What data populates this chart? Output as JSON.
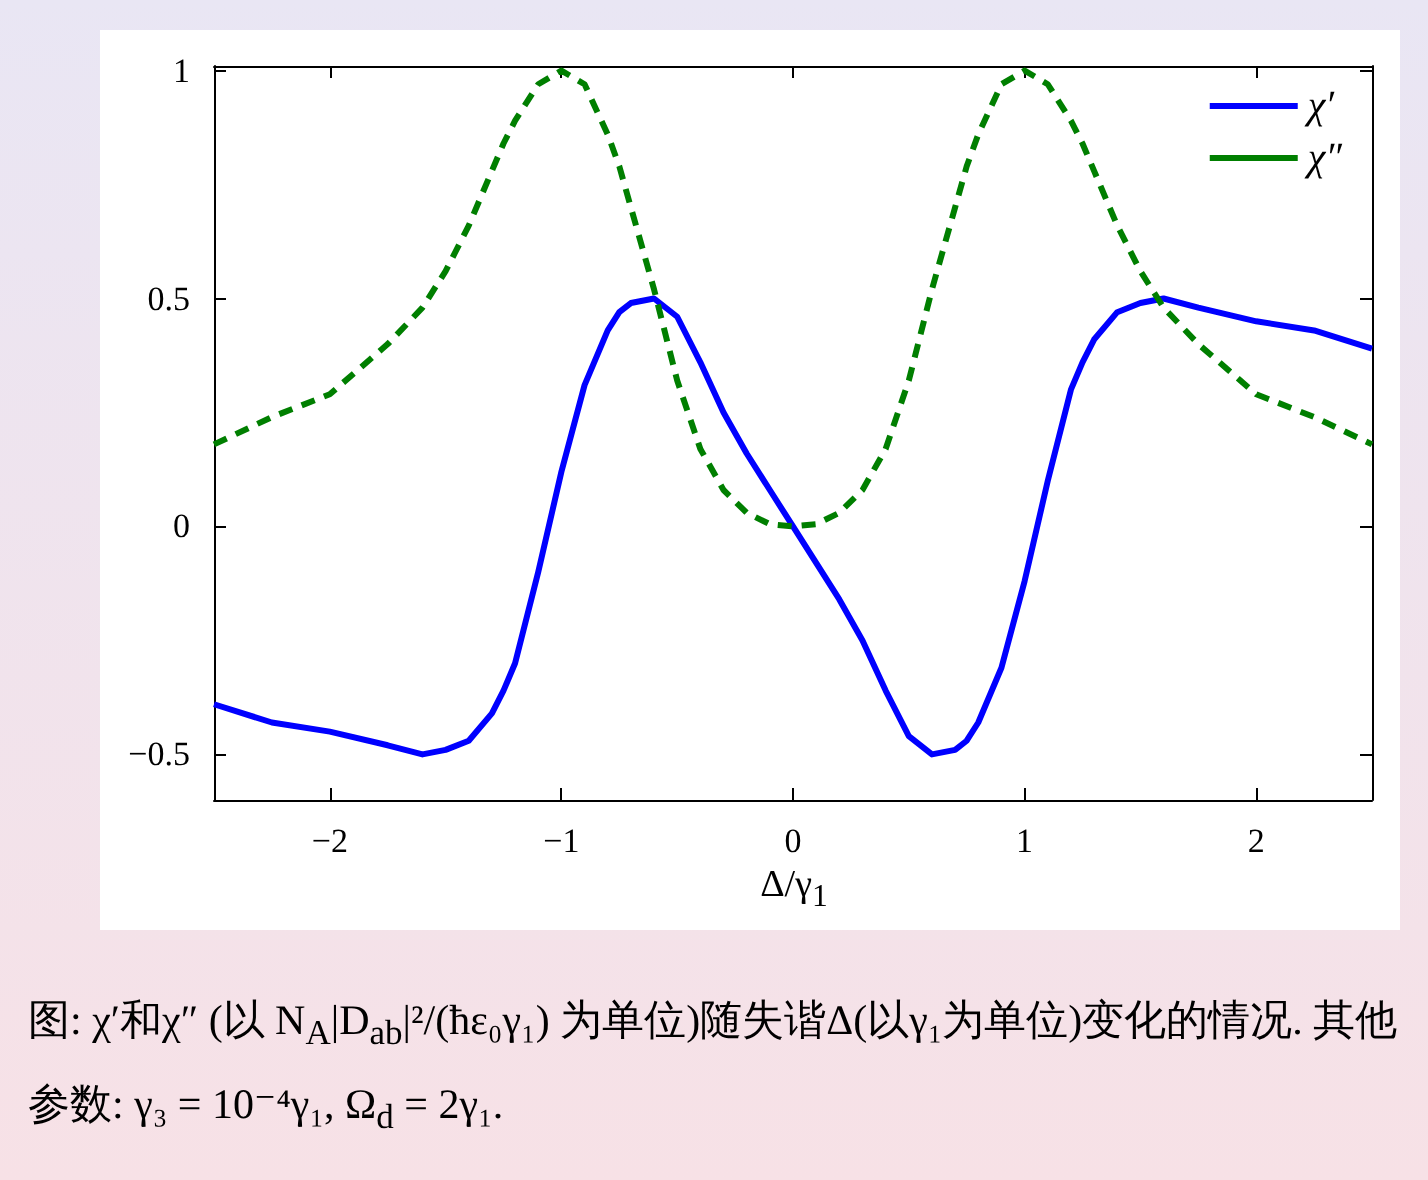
{
  "chart_data": {
    "type": "line",
    "xlabel": "Δ/γ$_{1}$",
    "xlim": [
      -2.5,
      2.5
    ],
    "xticks": [
      -2,
      -1,
      0,
      1,
      2
    ],
    "ylim": [
      -0.6,
      1.01
    ],
    "yticks": [
      -0.5,
      0,
      0.5,
      1
    ],
    "grid": false,
    "legend": "top right",
    "marker": "none",
    "x": [
      -2.5,
      -2.25,
      -2,
      -1.75,
      -1.6,
      -1.5,
      -1.4,
      -1.3,
      -1.25,
      -1.2,
      -1.1,
      -1,
      -0.9,
      -0.8,
      -0.75,
      -0.7,
      -0.6,
      -0.5,
      -0.4,
      -0.3,
      -0.2,
      -0.1,
      0,
      0.1,
      0.2,
      0.3,
      0.4,
      0.5,
      0.6,
      0.7,
      0.75,
      0.8,
      0.9,
      1,
      1.1,
      1.2,
      1.25,
      1.3,
      1.4,
      1.5,
      1.6,
      1.75,
      2,
      2.25,
      2.5
    ],
    "series": [
      {
        "name": "χ′",
        "color": "#0000ff",
        "line_style": "solid",
        "values": [
          -0.39,
          -0.43,
          -0.45,
          -0.48,
          -0.5,
          -0.49,
          -0.47,
          -0.41,
          -0.36,
          -0.3,
          -0.1,
          0.12,
          0.31,
          0.43,
          0.47,
          0.49,
          0.5,
          0.46,
          0.36,
          0.25,
          0.16,
          0.08,
          0,
          -0.08,
          -0.16,
          -0.25,
          -0.36,
          -0.46,
          -0.5,
          -0.49,
          -0.47,
          -0.43,
          -0.31,
          -0.12,
          0.1,
          0.3,
          0.36,
          0.41,
          0.47,
          0.49,
          0.5,
          0.48,
          0.45,
          0.43,
          0.39
        ]
      },
      {
        "name": "χ″",
        "color": "#007f00",
        "line_style": "dashed",
        "values": [
          0.18,
          0.24,
          0.29,
          0.4,
          0.48,
          0.56,
          0.66,
          0.78,
          0.84,
          0.89,
          0.97,
          1,
          0.97,
          0.86,
          0.79,
          0.7,
          0.52,
          0.32,
          0.17,
          0.08,
          0.03,
          0.005,
          0,
          0.005,
          0.03,
          0.08,
          0.17,
          0.32,
          0.52,
          0.7,
          0.79,
          0.86,
          0.97,
          1,
          0.97,
          0.89,
          0.84,
          0.78,
          0.66,
          0.56,
          0.48,
          0.4,
          0.29,
          0.24,
          0.18
        ]
      }
    ],
    "annotations": [
      "图: χ′和χ″ (以 N$_{A}$|D$_{ab}$|²/(ħε₀γ₁) 为单位)随失谐Δ(以γ₁为单位)变化的情况. 其他参数: γ₃ = 10⁻⁴γ₁, Ω$_{d}$ = 2γ₁."
    ]
  }
}
